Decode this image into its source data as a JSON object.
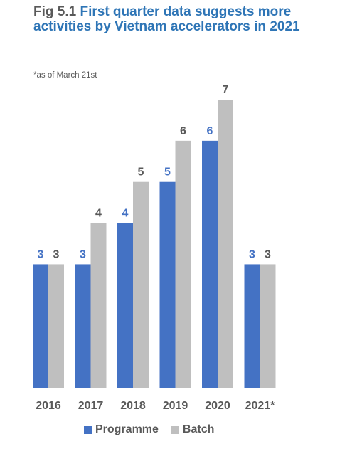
{
  "title": {
    "fig_number": "Fig 5.1",
    "text": "First quarter data suggests more activities by Vietnam accelerators in 2021"
  },
  "note": "*as of March 21st",
  "colors": {
    "programme": "#4472c4",
    "batch": "#bfbfbf",
    "title_accent": "#2e75b6",
    "text_gray": "#595959"
  },
  "chart_data": {
    "type": "bar",
    "categories": [
      "2016",
      "2017",
      "2018",
      "2019",
      "2020",
      "2021*"
    ],
    "series": [
      {
        "name": "Programme",
        "values": [
          3,
          3,
          4,
          5,
          6,
          3
        ]
      },
      {
        "name": "Batch",
        "values": [
          3,
          4,
          5,
          6,
          7,
          3
        ]
      }
    ],
    "ylim": [
      0,
      7
    ],
    "grid": false,
    "legend_position": "bottom"
  }
}
